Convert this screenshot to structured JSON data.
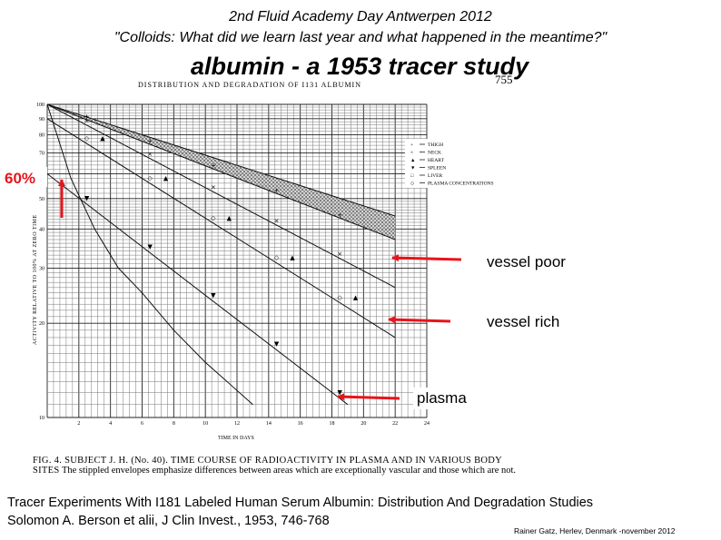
{
  "slide": {
    "header_line1": "2nd Fluid Academy Day Antwerpen 2012",
    "header_line2": "\"Colloids: What did we learn last year and what happened in the meantime?\"",
    "title": "albumin - a 1953 tracer study"
  },
  "scan": {
    "title": "DISTRIBUTION AND DEGRADATION OF I131 ALBUMIN",
    "page_number": "755",
    "caption_lead": "FIG. 4.  SUBJECT J. H. (No. 40).  TIME COURSE OF RADIOACTIVITY IN PLASMA AND IN VARIOUS BODY SITES",
    "caption_rest": "The stippled envelopes emphasize differences between areas which are exceptionally vascular and those which are not."
  },
  "annotations": {
    "percent_label": "60%",
    "vessel_poor": "vessel poor",
    "vessel_rich": "vessel rich",
    "plasma": "plasma"
  },
  "footer": {
    "citation_line1": "Tracer Experiments With I181 Labeled Human Serum Albumin: Distribution And Degradation Studies",
    "citation_line2": "Solomon A. Berson et alii, J Clin Invest., 1953, 746-768",
    "credit": "Rainer Gatz, Herlev, Denmark -november 2012"
  },
  "colors": {
    "arrow": "#e8141c",
    "ink": "#000000"
  },
  "chart_data": {
    "type": "line",
    "scale_y": "log",
    "xlabel": "TIME IN DAYS",
    "ylabel": "ACTIVITY RELATIVE TO 100% AT ZERO TIME",
    "xlim": [
      0,
      24
    ],
    "ylim": [
      10,
      100
    ],
    "x_ticks": [
      2,
      4,
      6,
      8,
      10,
      12,
      14,
      16,
      18,
      20,
      22,
      24
    ],
    "y_ticks": [
      10,
      20,
      30,
      40,
      50,
      60,
      70,
      80,
      90,
      100
    ],
    "legend": [
      {
        "symbol": "+",
        "label": "THIGH"
      },
      {
        "symbol": "×",
        "label": "NECK"
      },
      {
        "symbol": "▲",
        "label": "HEART"
      },
      {
        "symbol": "▼",
        "label": "SPLEEN"
      },
      {
        "symbol": "□",
        "label": "LIVER"
      },
      {
        "symbol": "◇",
        "label": "PLASMA CONCENTRATIONS"
      }
    ],
    "series": [
      {
        "x": [
          0,
          22
        ],
        "y": [
          100,
          44
        ]
      },
      {
        "x": [
          0,
          22
        ],
        "y": [
          100,
          37
        ]
      },
      {
        "x": [
          0,
          22
        ],
        "y": [
          100,
          26
        ]
      },
      {
        "x": [
          0,
          22
        ],
        "y": [
          90,
          18
        ]
      },
      {
        "x": [
          0,
          19
        ],
        "y": [
          60,
          11
        ]
      },
      {
        "x": [
          0,
          1.5,
          3,
          4.5,
          6,
          8,
          10,
          13
        ],
        "y": [
          100,
          58,
          40,
          30,
          25,
          19,
          15,
          11
        ]
      }
    ]
  }
}
